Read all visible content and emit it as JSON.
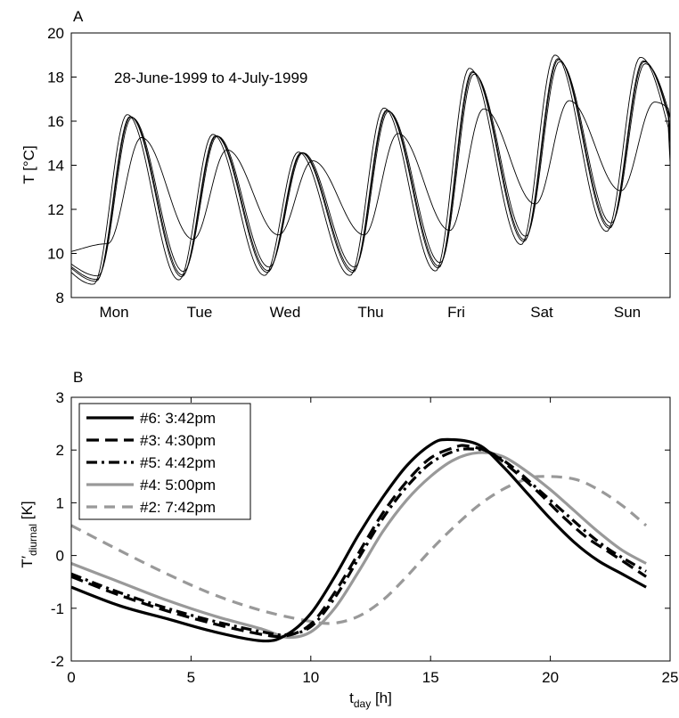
{
  "chart_data": [
    {
      "type": "line",
      "panel_label": "A",
      "annotation": "28-June-1999 to 4-July-1999",
      "xlabel": "",
      "ylabel": "T [°C]",
      "xlim": [
        0,
        7
      ],
      "ylim": [
        8,
        20
      ],
      "yticks": [
        8,
        10,
        12,
        14,
        16,
        18,
        20
      ],
      "categories": [
        "Mon",
        "Tue",
        "Wed",
        "Thu",
        "Fri",
        "Sat",
        "Sun"
      ],
      "grid": false,
      "days": [
        {
          "day": "Mon",
          "min": 8.6,
          "max": 16.3
        },
        {
          "day": "Tue",
          "min": 8.8,
          "max": 15.4
        },
        {
          "day": "Wed",
          "min": 9.0,
          "max": 14.6
        },
        {
          "day": "Thu",
          "min": 9.0,
          "max": 16.6
        },
        {
          "day": "Fri",
          "min": 9.2,
          "max": 18.4
        },
        {
          "day": "Sat",
          "min": 10.4,
          "max": 19.0
        },
        {
          "day": "Sun",
          "min": 11.0,
          "max": 18.9
        }
      ],
      "start_value": 9.6,
      "series": [
        {
          "id": "#6",
          "phase_h": 15.7,
          "amp_scale": 1.0,
          "offset": 0.0
        },
        {
          "id": "#3",
          "phase_h": 16.5,
          "amp_scale": 0.97,
          "offset": 0.05
        },
        {
          "id": "#5",
          "phase_h": 16.7,
          "amp_scale": 0.96,
          "offset": 0.1
        },
        {
          "id": "#4",
          "phase_h": 17.0,
          "amp_scale": 0.94,
          "offset": 0.2
        },
        {
          "id": "#2",
          "phase_h": 19.7,
          "amp_scale": 0.62,
          "offset": 0.7
        }
      ]
    },
    {
      "type": "line",
      "panel_label": "B",
      "xlabel": "t",
      "xlabel_sub": "day",
      "xlabel_unit": " [h]",
      "ylabel": "T′",
      "ylabel_sub": "diurnal",
      "ylabel_unit": " [K]",
      "xlim": [
        0,
        25
      ],
      "ylim": [
        -2,
        3
      ],
      "xticks": [
        0,
        5,
        10,
        15,
        20,
        25
      ],
      "yticks": [
        -2,
        -1,
        0,
        1,
        2,
        3
      ],
      "grid": false,
      "legend_position": "top-left",
      "series": [
        {
          "name": "#6: 3:42pm",
          "color": "#000000",
          "dash": "",
          "x": [
            0,
            2,
            4,
            6,
            8,
            9,
            10,
            11,
            12,
            13,
            14,
            15,
            15.7,
            17,
            18,
            19,
            20,
            21,
            22,
            23,
            24
          ],
          "y": [
            -0.6,
            -0.95,
            -1.2,
            -1.45,
            -1.62,
            -1.5,
            -1.1,
            -0.4,
            0.4,
            1.1,
            1.7,
            2.1,
            2.2,
            2.1,
            1.7,
            1.2,
            0.7,
            0.25,
            -0.1,
            -0.35,
            -0.6
          ]
        },
        {
          "name": "#3: 4:30pm",
          "color": "#000000",
          "dash": "14,7",
          "x": [
            0,
            2,
            4,
            6,
            8,
            9,
            10,
            11,
            12,
            13,
            14,
            15,
            16,
            16.5,
            17.5,
            18.5,
            19.5,
            20.5,
            21.5,
            22.5,
            24
          ],
          "y": [
            -0.4,
            -0.75,
            -1.05,
            -1.3,
            -1.5,
            -1.52,
            -1.3,
            -0.7,
            0.05,
            0.8,
            1.4,
            1.85,
            2.05,
            2.08,
            1.95,
            1.6,
            1.2,
            0.75,
            0.35,
            0.05,
            -0.4
          ]
        },
        {
          "name": "#5: 4:42pm",
          "color": "#000000",
          "dash": "12,5,3,5",
          "x": [
            0,
            2,
            4,
            6,
            8,
            9,
            10,
            11,
            12,
            13,
            14,
            15,
            16,
            16.7,
            17.5,
            18.5,
            19.5,
            20.5,
            21.5,
            22.5,
            24
          ],
          "y": [
            -0.35,
            -0.7,
            -1.0,
            -1.25,
            -1.45,
            -1.5,
            -1.35,
            -0.8,
            -0.05,
            0.7,
            1.3,
            1.75,
            1.98,
            2.02,
            1.95,
            1.65,
            1.25,
            0.85,
            0.45,
            0.1,
            -0.3
          ]
        },
        {
          "name": "#4: 5:00pm",
          "color": "#999999",
          "dash": "",
          "x": [
            0,
            2,
            4,
            6,
            8,
            9,
            10,
            11,
            12,
            13,
            14,
            15,
            16,
            17,
            18,
            19,
            20,
            21,
            22,
            23,
            24
          ],
          "y": [
            -0.15,
            -0.5,
            -0.85,
            -1.15,
            -1.4,
            -1.55,
            -1.45,
            -1.0,
            -0.3,
            0.45,
            1.05,
            1.5,
            1.82,
            1.95,
            1.88,
            1.6,
            1.25,
            0.85,
            0.45,
            0.1,
            -0.15
          ]
        },
        {
          "name": "#2: 7:42pm",
          "color": "#999999",
          "dash": "12,8",
          "x": [
            0,
            2,
            4,
            6,
            8,
            10,
            11,
            12,
            13,
            14,
            15,
            16,
            17,
            18,
            19,
            19.7,
            21,
            22,
            23,
            24
          ],
          "y": [
            0.57,
            0.1,
            -0.35,
            -0.75,
            -1.05,
            -1.25,
            -1.28,
            -1.15,
            -0.85,
            -0.4,
            0.1,
            0.55,
            0.95,
            1.25,
            1.45,
            1.5,
            1.45,
            1.25,
            0.95,
            0.57
          ]
        }
      ]
    }
  ]
}
